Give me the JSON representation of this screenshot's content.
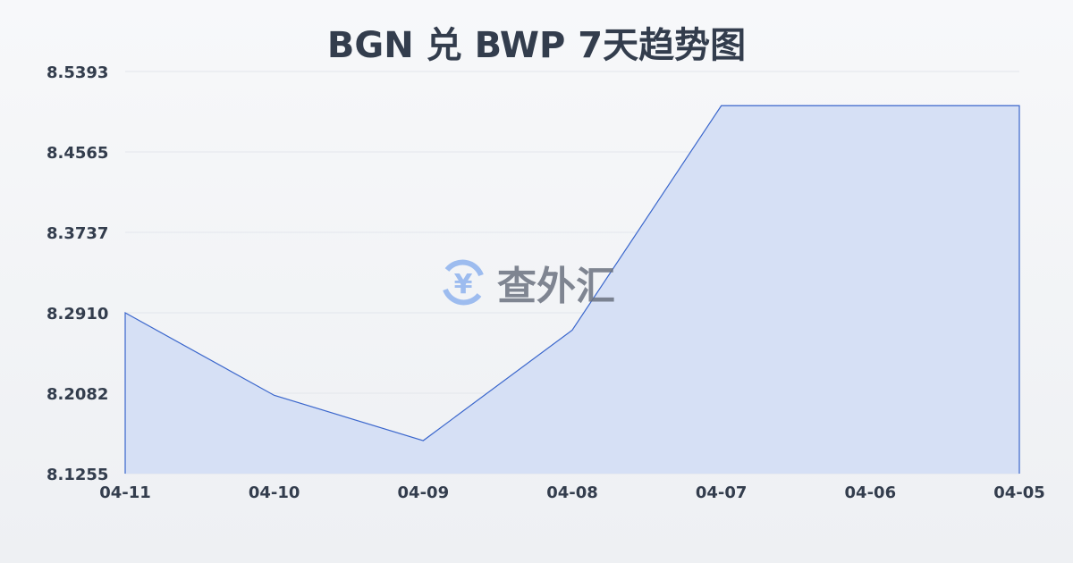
{
  "chart_data": {
    "type": "area",
    "title": "BGN 兑 BWP 7天趋势图",
    "categories": [
      "04-11",
      "04-10",
      "04-09",
      "04-08",
      "04-07",
      "04-06",
      "04-05"
    ],
    "values": [
      8.291,
      8.2061,
      8.1595,
      8.2732,
      8.5041,
      8.5041,
      8.5041
    ],
    "yticks": [
      "8.5393",
      "8.4565",
      "8.3737",
      "8.2910",
      "8.2082",
      "8.1255"
    ],
    "ylim": [
      8.1255,
      8.5393
    ],
    "grid": true,
    "line_color": "#3a66cc",
    "fill_color": "#d6e0f5"
  },
  "watermark": {
    "text": "查外汇",
    "icon": "yen-exchange-icon"
  }
}
